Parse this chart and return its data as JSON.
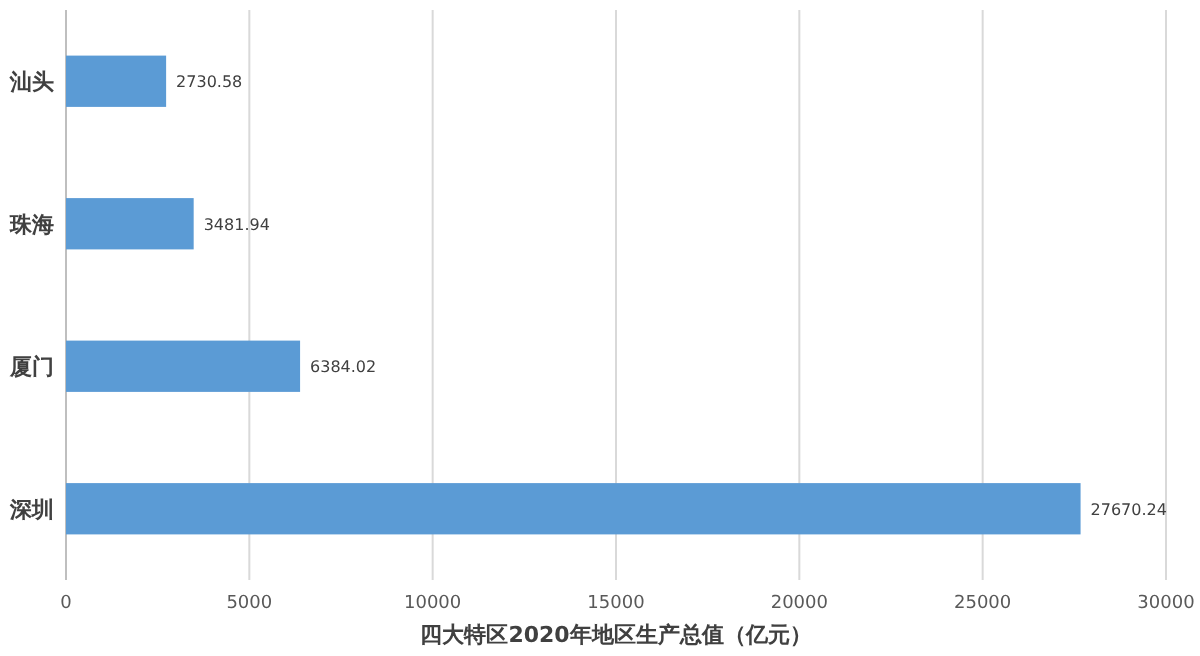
{
  "chart_data": {
    "type": "bar",
    "orientation": "horizontal",
    "xlabel": "四大特区2020年地区生产总值（亿元）",
    "categories": [
      "汕头",
      "珠海",
      "厦门",
      "深圳"
    ],
    "values": [
      2730.58,
      3481.94,
      6384.02,
      27670.24
    ],
    "color": "#5b9bd5",
    "xlim": [
      0,
      30000
    ],
    "xticks": [
      0,
      5000,
      10000,
      15000,
      20000,
      25000,
      30000
    ],
    "grid": "x",
    "data_labels": true
  }
}
